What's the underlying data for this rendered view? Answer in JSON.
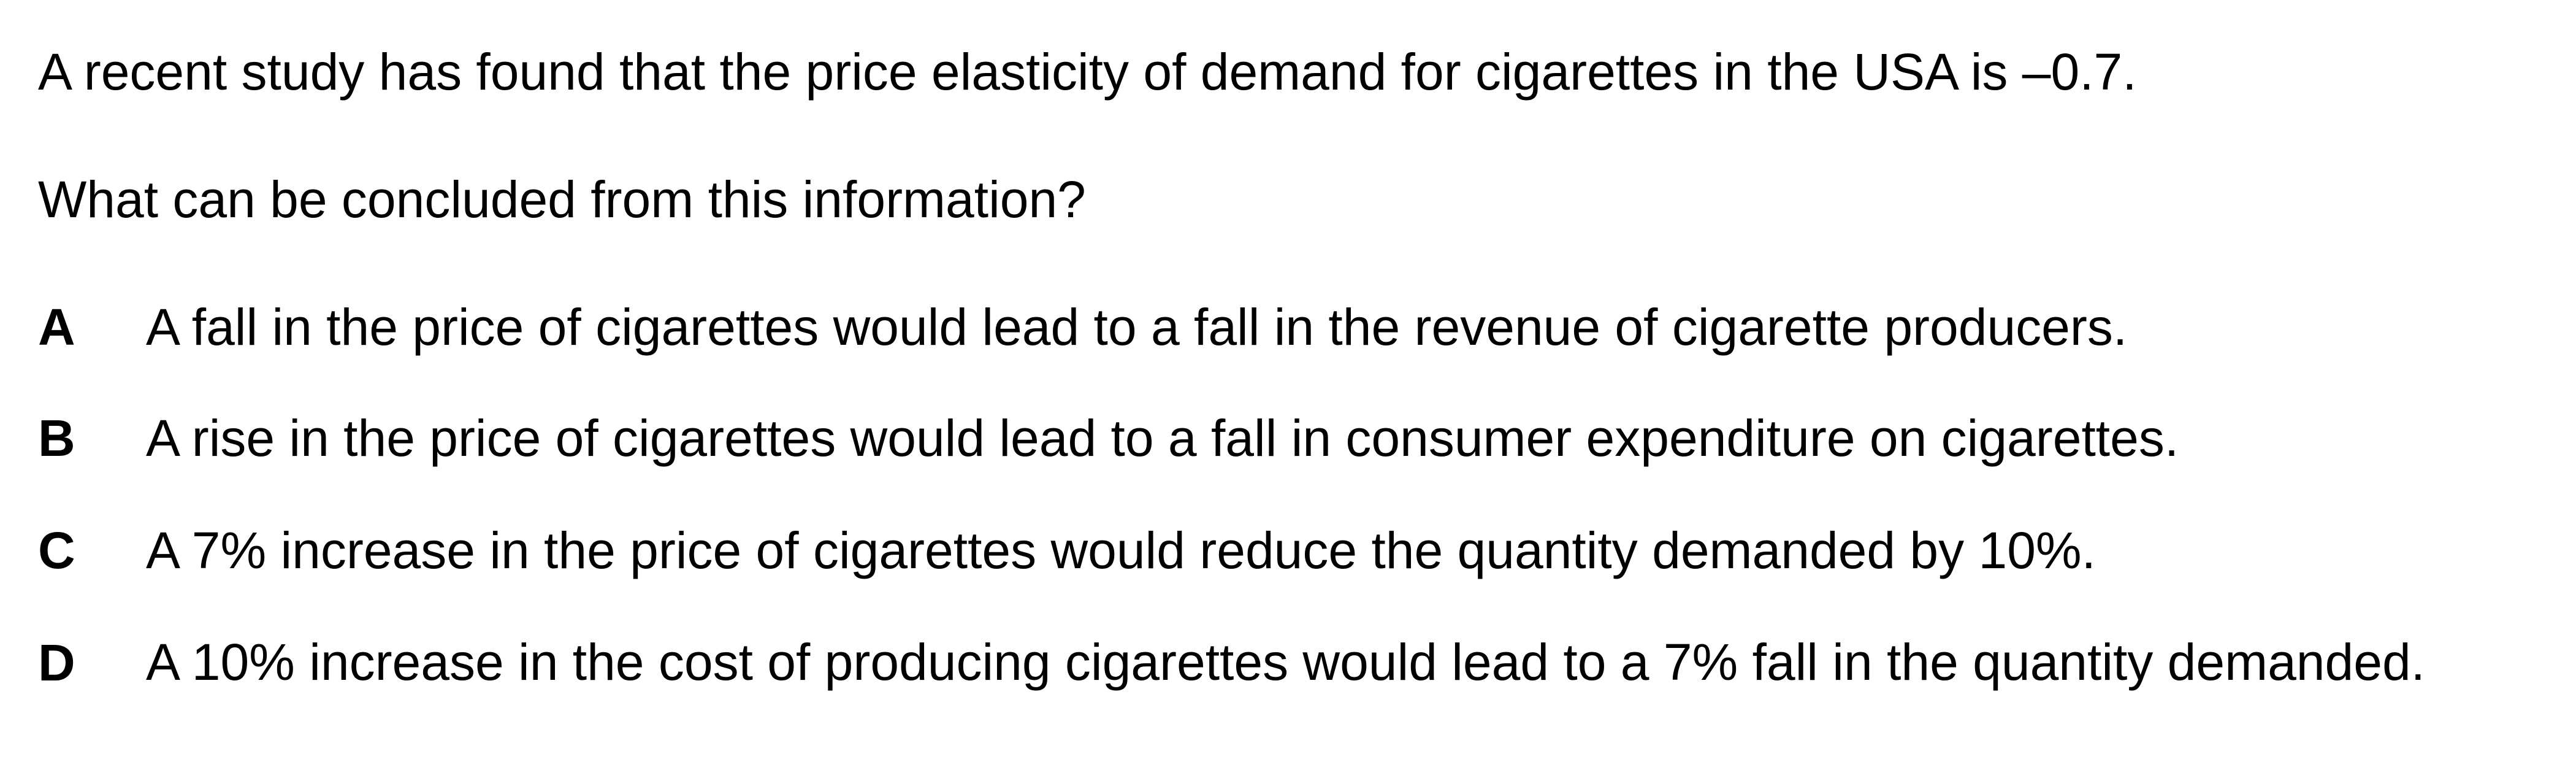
{
  "question": {
    "stem": "A recent study has found that the price elasticity of demand for cigarettes in the USA is –0.7.",
    "prompt": "What can be concluded from this information?"
  },
  "options": [
    {
      "letter": "A",
      "text": "A fall in the price of cigarettes would lead to a fall in the revenue of cigarette producers."
    },
    {
      "letter": "B",
      "text": "A rise in the price of cigarettes would lead to a fall in consumer expenditure on cigarettes."
    },
    {
      "letter": "C",
      "text": "A 7% increase in the price of cigarettes would reduce the quantity demanded by 10%."
    },
    {
      "letter": "D",
      "text": "A 10% increase in the cost of producing cigarettes would lead to a 7% fall in the quantity demanded."
    }
  ]
}
